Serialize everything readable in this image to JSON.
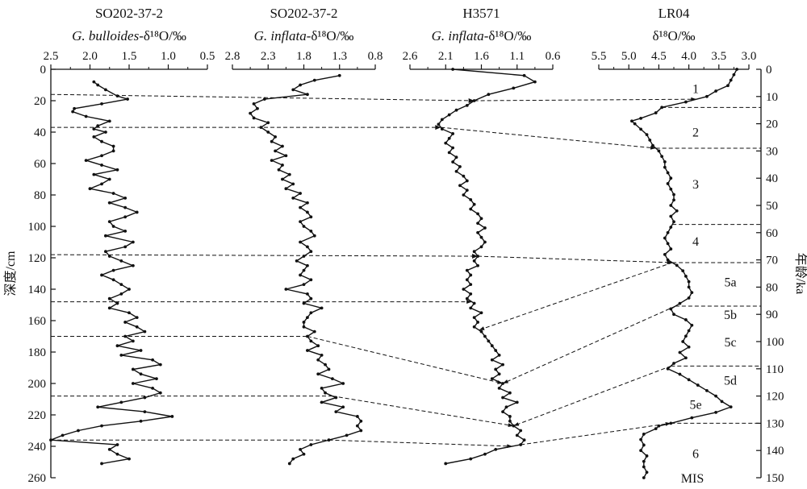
{
  "chart_data": {
    "type": "line",
    "depth_axis": {
      "label": "深度/cm",
      "range": [
        0,
        260
      ],
      "ticks": [
        0,
        20,
        40,
        60,
        80,
        100,
        120,
        140,
        160,
        180,
        200,
        220,
        240,
        260
      ]
    },
    "age_axis": {
      "label": "年龄/ka",
      "range": [
        0,
        150
      ],
      "ticks": [
        0,
        10,
        20,
        30,
        40,
        50,
        60,
        70,
        80,
        90,
        100,
        110,
        120,
        130,
        140,
        150
      ]
    },
    "panels": [
      {
        "id": "p1",
        "title": "SO202-37-2",
        "subtitle_italic": "G. bulloides",
        "subtitle_rest": "-δ¹⁸O/‰",
        "xlim": [
          2.5,
          0.5
        ],
        "xticks": [
          "2.5",
          "2.0",
          "1.5",
          "1.0",
          "0.5"
        ],
        "tick_values": [
          2.5,
          2.0,
          1.5,
          1.0,
          0.5
        ],
        "series": {
          "depth": [
            8,
            10,
            13,
            17,
            19,
            22,
            25,
            27,
            30,
            33,
            36,
            38,
            40,
            43,
            46,
            49,
            52,
            55,
            58,
            61,
            64,
            67,
            70,
            73,
            76,
            79,
            82,
            85,
            88,
            91,
            94,
            97,
            100,
            103,
            106,
            110,
            113,
            116,
            119,
            122,
            125,
            128,
            131,
            134,
            137,
            140,
            143,
            146,
            149,
            152,
            155,
            158,
            161,
            164,
            167,
            170,
            173,
            176,
            179,
            182,
            185,
            188,
            191,
            194,
            197,
            200,
            203,
            206,
            209,
            212,
            215,
            218,
            221,
            224,
            227,
            230,
            233,
            236,
            239,
            242,
            245,
            248,
            251
          ],
          "value": [
            1.95,
            1.9,
            1.8,
            1.65,
            1.52,
            1.85,
            2.2,
            2.22,
            2.05,
            1.75,
            1.9,
            1.95,
            1.8,
            1.95,
            1.85,
            1.7,
            1.7,
            1.85,
            2.05,
            1.85,
            1.65,
            1.95,
            1.75,
            1.85,
            2.0,
            1.7,
            1.55,
            1.75,
            1.55,
            1.4,
            1.55,
            1.75,
            1.7,
            1.55,
            1.8,
            1.45,
            1.55,
            1.8,
            1.75,
            1.6,
            1.45,
            1.7,
            1.85,
            1.7,
            1.6,
            1.5,
            1.6,
            1.75,
            1.65,
            1.75,
            1.5,
            1.4,
            1.55,
            1.4,
            1.3,
            1.55,
            1.45,
            1.65,
            1.35,
            1.6,
            1.2,
            1.1,
            1.45,
            1.35,
            1.15,
            1.45,
            1.2,
            1.1,
            1.3,
            1.6,
            1.9,
            1.3,
            0.95,
            1.35,
            1.85,
            2.15,
            2.35,
            2.5,
            1.65,
            1.75,
            1.65,
            1.5,
            1.85
          ]
        }
      },
      {
        "id": "p2",
        "title": "SO202-37-2",
        "subtitle_italic": "G. inflata",
        "subtitle_rest": "-δ¹⁸O/‰",
        "xlim": [
          2.8,
          0.8
        ],
        "xticks": [
          "2.8",
          "2.3",
          "1.8",
          "1.3",
          "0.8"
        ],
        "tick_values": [
          2.8,
          2.3,
          1.8,
          1.3,
          0.8
        ],
        "series": {
          "depth": [
            4,
            7,
            10,
            13,
            16,
            19,
            22,
            25,
            28,
            31,
            34,
            37,
            40,
            43,
            46,
            49,
            52,
            55,
            58,
            61,
            64,
            67,
            70,
            73,
            76,
            79,
            82,
            85,
            88,
            91,
            94,
            97,
            100,
            103,
            106,
            110,
            113,
            116,
            119,
            122,
            125,
            128,
            131,
            134,
            137,
            140,
            143,
            146,
            149,
            152,
            155,
            158,
            161,
            164,
            167,
            170,
            173,
            176,
            179,
            182,
            185,
            188,
            191,
            194,
            197,
            200,
            203,
            206,
            209,
            212,
            215,
            218,
            221,
            224,
            227,
            230,
            233,
            236,
            239,
            242,
            245,
            248,
            251
          ],
          "value": [
            1.3,
            1.65,
            1.85,
            1.95,
            1.75,
            2.35,
            2.5,
            2.45,
            2.55,
            2.5,
            2.3,
            2.4,
            2.3,
            2.2,
            2.25,
            2.1,
            2.2,
            2.05,
            2.25,
            2.1,
            2.15,
            2.0,
            2.1,
            1.95,
            2.05,
            1.85,
            1.95,
            1.75,
            1.85,
            1.75,
            1.7,
            1.85,
            1.8,
            1.7,
            1.65,
            1.85,
            1.75,
            1.7,
            1.8,
            1.9,
            1.75,
            1.8,
            1.85,
            1.7,
            1.8,
            2.05,
            1.75,
            1.7,
            1.8,
            1.55,
            1.7,
            1.75,
            1.8,
            1.8,
            1.65,
            1.75,
            1.7,
            1.6,
            1.75,
            1.55,
            1.6,
            1.5,
            1.45,
            1.6,
            1.4,
            1.25,
            1.55,
            1.5,
            1.35,
            1.55,
            1.25,
            1.35,
            1.05,
            1.0,
            1.05,
            1.0,
            1.2,
            1.45,
            1.7,
            1.85,
            1.8,
            1.95,
            2.0
          ]
        }
      },
      {
        "id": "p3",
        "title": "H3571",
        "subtitle_italic": "G. inflata",
        "subtitle_rest": "-δ¹⁸O/‰",
        "xlim": [
          2.6,
          0.6
        ],
        "xticks": [
          "2.6",
          "2.1",
          "1.6",
          "1.1",
          "0.6"
        ],
        "tick_values": [
          2.6,
          2.1,
          1.6,
          1.1,
          0.6
        ],
        "series": {
          "depth": [
            0,
            4,
            8,
            12,
            16,
            20,
            23,
            26,
            29,
            32,
            35,
            38,
            41,
            44,
            47,
            50,
            53,
            56,
            59,
            62,
            65,
            68,
            71,
            74,
            77,
            80,
            83,
            86,
            89,
            92,
            95,
            98,
            101,
            104,
            107,
            110,
            113,
            116,
            119,
            122,
            125,
            128,
            131,
            134,
            137,
            140,
            143,
            146,
            149,
            152,
            155,
            158,
            161,
            164,
            167,
            170,
            173,
            176,
            179,
            182,
            185,
            188,
            191,
            194,
            197,
            200,
            203,
            206,
            209,
            212,
            215,
            218,
            221,
            224,
            227,
            230,
            233,
            236,
            239,
            242,
            245,
            248,
            251
          ],
          "value": [
            2.0,
            1.0,
            0.85,
            1.15,
            1.5,
            1.7,
            1.8,
            1.95,
            2.05,
            2.15,
            2.2,
            2.15,
            2.0,
            2.05,
            2.1,
            2.0,
            2.05,
            1.95,
            2.0,
            1.9,
            1.95,
            1.85,
            1.8,
            1.9,
            1.8,
            1.85,
            1.75,
            1.7,
            1.75,
            1.65,
            1.6,
            1.65,
            1.55,
            1.65,
            1.6,
            1.55,
            1.6,
            1.7,
            1.65,
            1.7,
            1.65,
            1.8,
            1.75,
            1.8,
            1.75,
            1.85,
            1.75,
            1.8,
            1.7,
            1.75,
            1.6,
            1.7,
            1.65,
            1.7,
            1.6,
            1.55,
            1.5,
            1.45,
            1.4,
            1.35,
            1.45,
            1.3,
            1.4,
            1.35,
            1.45,
            1.3,
            1.35,
            1.2,
            1.3,
            1.1,
            1.25,
            1.3,
            1.2,
            1.2,
            1.15,
            1.05,
            1.1,
            1.0,
            1.05,
            1.4,
            1.55,
            1.75,
            2.1
          ]
        }
      },
      {
        "id": "p4",
        "title": "LR04",
        "subtitle_italic": "",
        "subtitle_rest": "δ¹⁸O/‰",
        "xlim": [
          5.5,
          3.0
        ],
        "xticks": [
          "5.5",
          "5.0",
          "4.5",
          "4.0",
          "3.5",
          "3.0"
        ],
        "tick_values": [
          5.5,
          5.0,
          4.5,
          4.0,
          3.5,
          3.0
        ],
        "series": {
          "age": [
            0,
            2,
            4,
            6,
            8,
            10,
            12,
            14,
            16,
            18,
            19,
            20,
            22,
            24,
            26,
            28,
            30,
            32,
            34,
            36,
            38,
            40,
            42,
            44,
            46,
            48,
            50,
            52,
            54,
            56,
            58,
            60,
            62,
            64,
            66,
            68,
            70,
            72,
            74,
            76,
            78,
            80,
            82,
            84,
            86,
            88,
            90,
            92,
            94,
            96,
            98,
            100,
            102,
            104,
            106,
            108,
            110,
            112,
            114,
            116,
            118,
            120,
            122,
            124,
            126,
            128,
            130,
            131,
            132,
            134,
            136,
            138,
            140,
            142,
            144,
            146,
            148,
            150
          ],
          "value": [
            3.2,
            3.25,
            3.3,
            3.35,
            3.55,
            3.7,
            4.05,
            4.45,
            4.55,
            4.8,
            4.95,
            4.9,
            4.8,
            4.7,
            4.65,
            4.6,
            4.5,
            4.45,
            4.4,
            4.4,
            4.35,
            4.3,
            4.35,
            4.3,
            4.25,
            4.25,
            4.3,
            4.2,
            4.3,
            4.25,
            4.3,
            4.35,
            4.4,
            4.35,
            4.3,
            4.4,
            4.35,
            4.2,
            4.1,
            4.05,
            4.0,
            4.0,
            3.95,
            4.0,
            4.15,
            4.3,
            4.25,
            4.05,
            3.95,
            4.0,
            4.05,
            4.1,
            4.0,
            4.15,
            4.05,
            4.25,
            4.35,
            4.15,
            4.0,
            3.85,
            3.7,
            3.55,
            3.45,
            3.3,
            3.55,
            3.95,
            4.3,
            4.5,
            4.55,
            4.75,
            4.8,
            4.75,
            4.8,
            4.7,
            4.75,
            4.75,
            4.7,
            4.75
          ]
        }
      }
    ],
    "tie_points": [
      {
        "from_panel": "p1",
        "depth": 16,
        "to_panel": "p3",
        "to_depth": 20
      },
      {
        "from_panel": "p1",
        "depth": 37,
        "to_panel": "p3",
        "to_depth": 37
      },
      {
        "from_panel": "p1",
        "depth": 118,
        "to_panel": "p3",
        "to_depth": 119
      },
      {
        "from_panel": "p1",
        "depth": 148,
        "to_panel": "p3",
        "to_depth": 148
      },
      {
        "from_panel": "p1",
        "depth": 170,
        "to_panel": "p3",
        "to_depth": 200
      },
      {
        "from_panel": "p1",
        "depth": 208,
        "to_panel": "p3",
        "to_depth": 227
      },
      {
        "from_panel": "p1",
        "depth": 236,
        "to_panel": "p3",
        "to_depth": 240
      }
    ],
    "age_ties": [
      {
        "depth": 20,
        "age": 11
      },
      {
        "depth": 37,
        "age": 29
      },
      {
        "depth": 119,
        "age": 71
      },
      {
        "depth": 166,
        "age": 71
      },
      {
        "depth": 200,
        "age": 87
      },
      {
        "depth": 227,
        "age": 109
      },
      {
        "depth": 239,
        "age": 130
      }
    ],
    "mis_boundaries": [
      14,
      29,
      57,
      71,
      87,
      109,
      130
    ],
    "mis_labels": [
      {
        "label": "1",
        "age": 7
      },
      {
        "label": "2",
        "age": 23
      },
      {
        "label": "3",
        "age": 42
      },
      {
        "label": "4",
        "age": 63
      },
      {
        "label": "5a",
        "age": 78
      },
      {
        "label": "5b",
        "age": 90
      },
      {
        "label": "5c",
        "age": 100
      },
      {
        "label": "5d",
        "age": 114
      },
      {
        "label": "5e",
        "age": 123
      },
      {
        "label": "6",
        "age": 141
      },
      {
        "label": "MIS",
        "age": 150
      }
    ]
  }
}
